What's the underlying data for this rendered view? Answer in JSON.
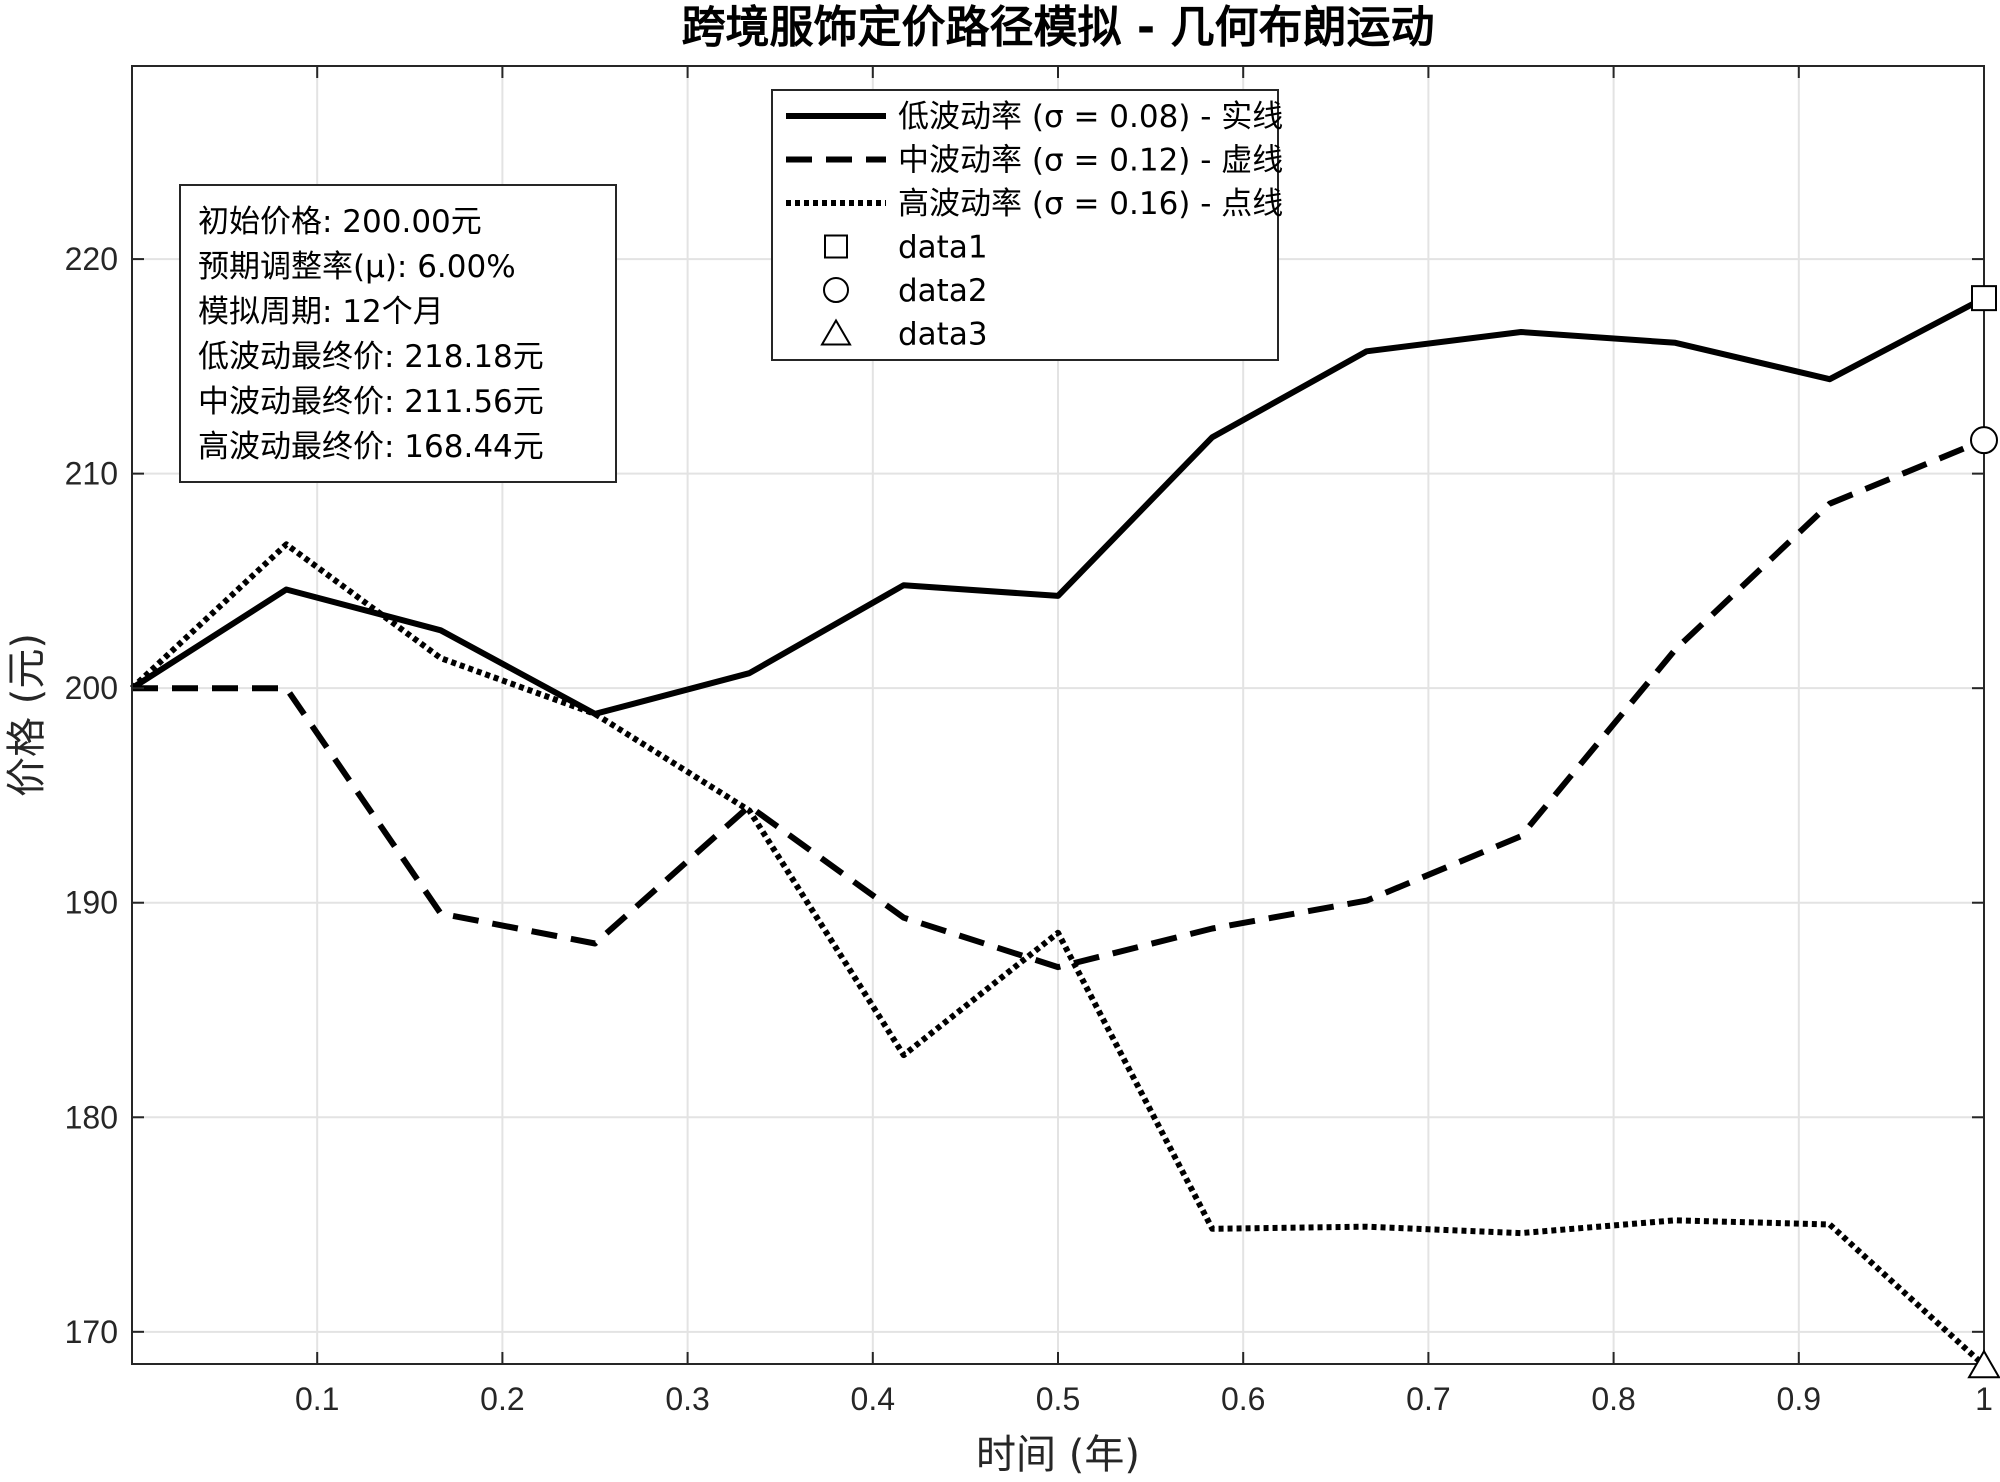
{
  "chart_data": {
    "type": "line",
    "title": "跨境服饰定价路径模拟 - 几何布朗运动",
    "xlabel": "时间 (年)",
    "ylabel": "价格 (元)",
    "xlim": [
      0,
      1
    ],
    "ylim": [
      168.5,
      229
    ],
    "xticks": [
      0.1,
      0.2,
      0.3,
      0.4,
      0.5,
      0.6,
      0.7,
      0.8,
      0.9,
      1
    ],
    "xtick_labels": [
      "0.1",
      "0.2",
      "0.3",
      "0.4",
      "0.5",
      "0.6",
      "0.7",
      "0.8",
      "0.9",
      "1"
    ],
    "yticks": [
      170,
      180,
      190,
      200,
      210,
      220
    ],
    "ytick_labels": [
      "170",
      "180",
      "190",
      "200",
      "210",
      "220"
    ],
    "grid": true,
    "x": [
      0,
      0.0833,
      0.1667,
      0.25,
      0.3333,
      0.4167,
      0.5,
      0.5833,
      0.6667,
      0.75,
      0.8333,
      0.9167,
      1.0
    ],
    "series": [
      {
        "name": "低波动率 (σ = 0.08) - 实线",
        "style": "solid",
        "values": [
          200.0,
          204.6,
          202.7,
          198.8,
          200.7,
          204.8,
          204.3,
          211.7,
          215.7,
          216.6,
          216.1,
          214.4,
          218.18
        ]
      },
      {
        "name": "中波动率 (σ = 0.12) - 虚线",
        "style": "dashed",
        "values": [
          200.0,
          200.0,
          189.5,
          188.1,
          194.5,
          189.3,
          187.0,
          188.8,
          190.1,
          193.1,
          201.8,
          208.6,
          211.56
        ]
      },
      {
        "name": "高波动率 (σ = 0.16) - 点线",
        "style": "dotted",
        "values": [
          200.0,
          206.7,
          201.4,
          198.8,
          194.3,
          182.9,
          188.6,
          174.8,
          174.9,
          174.6,
          175.2,
          175.0,
          168.44
        ]
      }
    ],
    "markers": [
      {
        "name": "data1",
        "shape": "square",
        "x": 1.0,
        "y": 218.18
      },
      {
        "name": "data2",
        "shape": "circle",
        "x": 1.0,
        "y": 211.56
      },
      {
        "name": "data3",
        "shape": "triangle",
        "x": 1.0,
        "y": 168.44
      }
    ],
    "legend_position": "top-center",
    "annotation": [
      "初始价格: 200.00元",
      "预期调整率(μ): 6.00%",
      "模拟周期: 12个月",
      "低波动最终价: 218.18元",
      "中波动最终价: 211.56元",
      "高波动最终价: 168.44元"
    ],
    "annotation_position": "top-left"
  }
}
